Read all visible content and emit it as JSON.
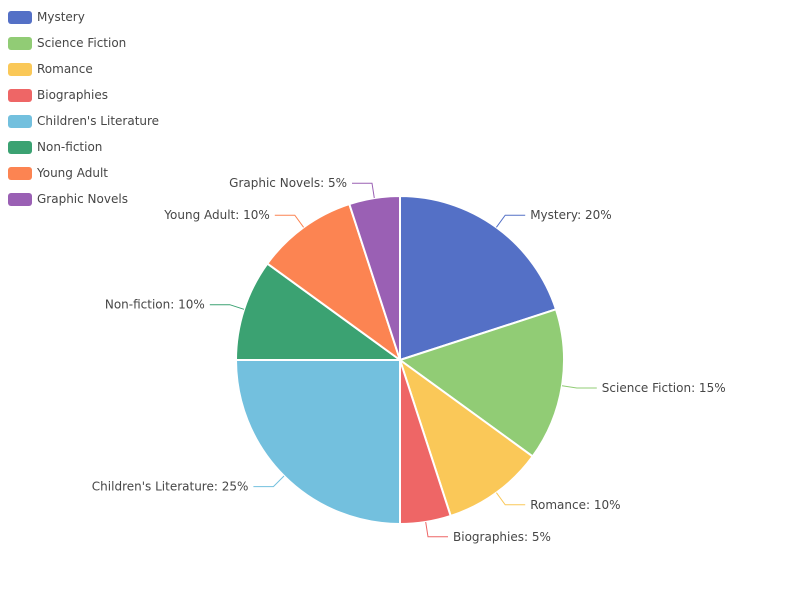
{
  "chart_data": {
    "type": "pie",
    "title": "",
    "legend_position": "top-left",
    "slices": [
      {
        "name": "Mystery",
        "value": 20,
        "label": "Mystery: 20%",
        "color": "#5470c6"
      },
      {
        "name": "Science Fiction",
        "value": 15,
        "label": "Science Fiction: 15%",
        "color": "#91cc75"
      },
      {
        "name": "Romance",
        "value": 10,
        "label": "Romance: 10%",
        "color": "#fac858"
      },
      {
        "name": "Biographies",
        "value": 5,
        "label": "Biographies: 5%",
        "color": "#ee6666"
      },
      {
        "name": "Children's Literature",
        "value": 25,
        "label": "Children's Literature: 25%",
        "color": "#73c0de"
      },
      {
        "name": "Non-fiction",
        "value": 10,
        "label": "Non-fiction: 10%",
        "color": "#3ba272"
      },
      {
        "name": "Young Adult",
        "value": 10,
        "label": "Young Adult: 10%",
        "color": "#fc8452"
      },
      {
        "name": "Graphic Novels",
        "value": 5,
        "label": "Graphic Novels: 5%",
        "color": "#9a60b4"
      }
    ]
  }
}
